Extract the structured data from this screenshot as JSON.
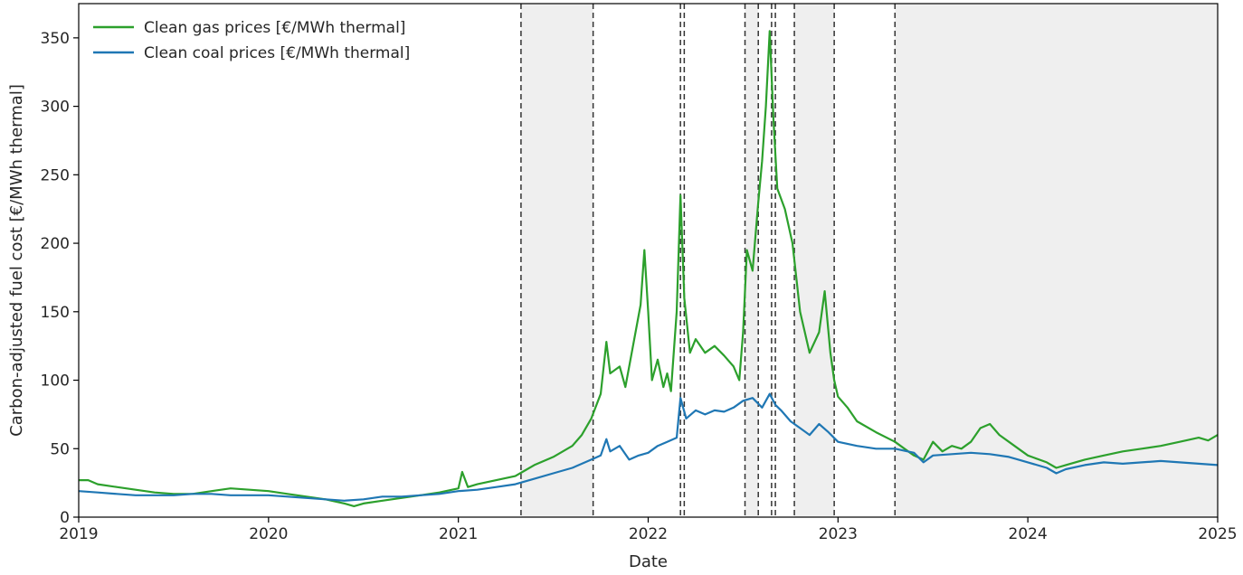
{
  "chart_data": {
    "type": "line",
    "title": "",
    "xlabel": "Date",
    "ylabel": "Carbon-adjusted fuel cost [€/MWh thermal]",
    "xlim": [
      2019.0,
      2025.0
    ],
    "ylim": [
      0,
      375
    ],
    "x_ticks": [
      {
        "value": 2019,
        "label": "2019"
      },
      {
        "value": 2020,
        "label": "2020"
      },
      {
        "value": 2021,
        "label": "2021"
      },
      {
        "value": 2022,
        "label": "2022"
      },
      {
        "value": 2023,
        "label": "2023"
      },
      {
        "value": 2024,
        "label": "2024"
      },
      {
        "value": 2025,
        "label": "2025"
      }
    ],
    "y_ticks": [
      {
        "value": 0,
        "label": "0"
      },
      {
        "value": 50,
        "label": "50"
      },
      {
        "value": 100,
        "label": "100"
      },
      {
        "value": 150,
        "label": "150"
      },
      {
        "value": 200,
        "label": "200"
      },
      {
        "value": 250,
        "label": "250"
      },
      {
        "value": 300,
        "label": "300"
      },
      {
        "value": 350,
        "label": "350"
      }
    ],
    "grid": false,
    "legend_position": "top-left",
    "shaded_periods": [
      [
        2021.33,
        2021.71
      ],
      [
        2022.51,
        2022.58
      ],
      [
        2022.77,
        2022.98
      ],
      [
        2023.3,
        2025.0
      ]
    ],
    "vertical_lines": [
      2021.33,
      2021.71,
      2022.17,
      2022.19,
      2022.51,
      2022.58,
      2022.65,
      2022.67,
      2022.77,
      2022.98,
      2023.3
    ],
    "series": [
      {
        "name": "Clean gas prices [€/MWh thermal]",
        "color": "#2ca02c",
        "points": [
          [
            2019.0,
            27
          ],
          [
            2019.05,
            27
          ],
          [
            2019.1,
            24
          ],
          [
            2019.2,
            22
          ],
          [
            2019.3,
            20
          ],
          [
            2019.4,
            18
          ],
          [
            2019.5,
            17
          ],
          [
            2019.6,
            17
          ],
          [
            2019.7,
            19
          ],
          [
            2019.8,
            21
          ],
          [
            2019.9,
            20
          ],
          [
            2020.0,
            19
          ],
          [
            2020.1,
            17
          ],
          [
            2020.2,
            15
          ],
          [
            2020.3,
            13
          ],
          [
            2020.4,
            10
          ],
          [
            2020.45,
            8
          ],
          [
            2020.5,
            10
          ],
          [
            2020.6,
            12
          ],
          [
            2020.7,
            14
          ],
          [
            2020.8,
            16
          ],
          [
            2020.9,
            18
          ],
          [
            2021.0,
            21
          ],
          [
            2021.02,
            33
          ],
          [
            2021.05,
            22
          ],
          [
            2021.1,
            24
          ],
          [
            2021.2,
            27
          ],
          [
            2021.3,
            30
          ],
          [
            2021.35,
            34
          ],
          [
            2021.4,
            38
          ],
          [
            2021.5,
            44
          ],
          [
            2021.6,
            52
          ],
          [
            2021.65,
            60
          ],
          [
            2021.7,
            72
          ],
          [
            2021.75,
            90
          ],
          [
            2021.78,
            128
          ],
          [
            2021.8,
            105
          ],
          [
            2021.85,
            110
          ],
          [
            2021.88,
            95
          ],
          [
            2021.92,
            125
          ],
          [
            2021.96,
            155
          ],
          [
            2021.98,
            195
          ],
          [
            2022.0,
            150
          ],
          [
            2022.02,
            100
          ],
          [
            2022.05,
            115
          ],
          [
            2022.08,
            95
          ],
          [
            2022.1,
            105
          ],
          [
            2022.12,
            92
          ],
          [
            2022.15,
            150
          ],
          [
            2022.17,
            235
          ],
          [
            2022.19,
            160
          ],
          [
            2022.22,
            120
          ],
          [
            2022.25,
            130
          ],
          [
            2022.3,
            120
          ],
          [
            2022.35,
            125
          ],
          [
            2022.4,
            118
          ],
          [
            2022.45,
            110
          ],
          [
            2022.48,
            100
          ],
          [
            2022.5,
            135
          ],
          [
            2022.52,
            195
          ],
          [
            2022.55,
            180
          ],
          [
            2022.58,
            230
          ],
          [
            2022.6,
            260
          ],
          [
            2022.62,
            300
          ],
          [
            2022.64,
            355
          ],
          [
            2022.66,
            290
          ],
          [
            2022.68,
            240
          ],
          [
            2022.72,
            225
          ],
          [
            2022.76,
            200
          ],
          [
            2022.8,
            150
          ],
          [
            2022.85,
            120
          ],
          [
            2022.9,
            135
          ],
          [
            2022.93,
            165
          ],
          [
            2022.96,
            120
          ],
          [
            2022.98,
            100
          ],
          [
            2023.0,
            88
          ],
          [
            2023.05,
            80
          ],
          [
            2023.1,
            70
          ],
          [
            2023.2,
            62
          ],
          [
            2023.3,
            55
          ],
          [
            2023.35,
            50
          ],
          [
            2023.4,
            45
          ],
          [
            2023.45,
            42
          ],
          [
            2023.5,
            55
          ],
          [
            2023.55,
            48
          ],
          [
            2023.6,
            52
          ],
          [
            2023.65,
            50
          ],
          [
            2023.7,
            55
          ],
          [
            2023.75,
            65
          ],
          [
            2023.8,
            68
          ],
          [
            2023.85,
            60
          ],
          [
            2023.9,
            55
          ],
          [
            2024.0,
            45
          ],
          [
            2024.1,
            40
          ],
          [
            2024.15,
            36
          ],
          [
            2024.2,
            38
          ],
          [
            2024.3,
            42
          ],
          [
            2024.4,
            45
          ],
          [
            2024.5,
            48
          ],
          [
            2024.6,
            50
          ],
          [
            2024.7,
            52
          ],
          [
            2024.8,
            55
          ],
          [
            2024.9,
            58
          ],
          [
            2024.95,
            56
          ],
          [
            2025.0,
            60
          ]
        ]
      },
      {
        "name": "Clean coal prices [€/MWh thermal]",
        "color": "#1f77b4",
        "points": [
          [
            2019.0,
            19
          ],
          [
            2019.1,
            18
          ],
          [
            2019.2,
            17
          ],
          [
            2019.3,
            16
          ],
          [
            2019.4,
            16
          ],
          [
            2019.5,
            16
          ],
          [
            2019.6,
            17
          ],
          [
            2019.7,
            17
          ],
          [
            2019.8,
            16
          ],
          [
            2019.9,
            16
          ],
          [
            2020.0,
            16
          ],
          [
            2020.1,
            15
          ],
          [
            2020.2,
            14
          ],
          [
            2020.3,
            13
          ],
          [
            2020.4,
            12
          ],
          [
            2020.5,
            13
          ],
          [
            2020.6,
            15
          ],
          [
            2020.7,
            15
          ],
          [
            2020.8,
            16
          ],
          [
            2020.9,
            17
          ],
          [
            2021.0,
            19
          ],
          [
            2021.1,
            20
          ],
          [
            2021.2,
            22
          ],
          [
            2021.3,
            24
          ],
          [
            2021.4,
            28
          ],
          [
            2021.5,
            32
          ],
          [
            2021.6,
            36
          ],
          [
            2021.7,
            42
          ],
          [
            2021.75,
            45
          ],
          [
            2021.78,
            57
          ],
          [
            2021.8,
            48
          ],
          [
            2021.85,
            52
          ],
          [
            2021.9,
            42
          ],
          [
            2021.95,
            45
          ],
          [
            2022.0,
            47
          ],
          [
            2022.05,
            52
          ],
          [
            2022.1,
            55
          ],
          [
            2022.15,
            58
          ],
          [
            2022.17,
            87
          ],
          [
            2022.2,
            72
          ],
          [
            2022.25,
            78
          ],
          [
            2022.3,
            75
          ],
          [
            2022.35,
            78
          ],
          [
            2022.4,
            77
          ],
          [
            2022.45,
            80
          ],
          [
            2022.5,
            85
          ],
          [
            2022.55,
            87
          ],
          [
            2022.6,
            80
          ],
          [
            2022.64,
            90
          ],
          [
            2022.67,
            82
          ],
          [
            2022.7,
            78
          ],
          [
            2022.75,
            70
          ],
          [
            2022.8,
            65
          ],
          [
            2022.85,
            60
          ],
          [
            2022.9,
            68
          ],
          [
            2022.95,
            62
          ],
          [
            2023.0,
            55
          ],
          [
            2023.1,
            52
          ],
          [
            2023.2,
            50
          ],
          [
            2023.3,
            50
          ],
          [
            2023.4,
            47
          ],
          [
            2023.45,
            40
          ],
          [
            2023.5,
            45
          ],
          [
            2023.6,
            46
          ],
          [
            2023.7,
            47
          ],
          [
            2023.8,
            46
          ],
          [
            2023.9,
            44
          ],
          [
            2024.0,
            40
          ],
          [
            2024.1,
            36
          ],
          [
            2024.15,
            32
          ],
          [
            2024.2,
            35
          ],
          [
            2024.3,
            38
          ],
          [
            2024.4,
            40
          ],
          [
            2024.5,
            39
          ],
          [
            2024.6,
            40
          ],
          [
            2024.7,
            41
          ],
          [
            2024.8,
            40
          ],
          [
            2024.9,
            39
          ],
          [
            2025.0,
            38
          ]
        ]
      }
    ]
  }
}
